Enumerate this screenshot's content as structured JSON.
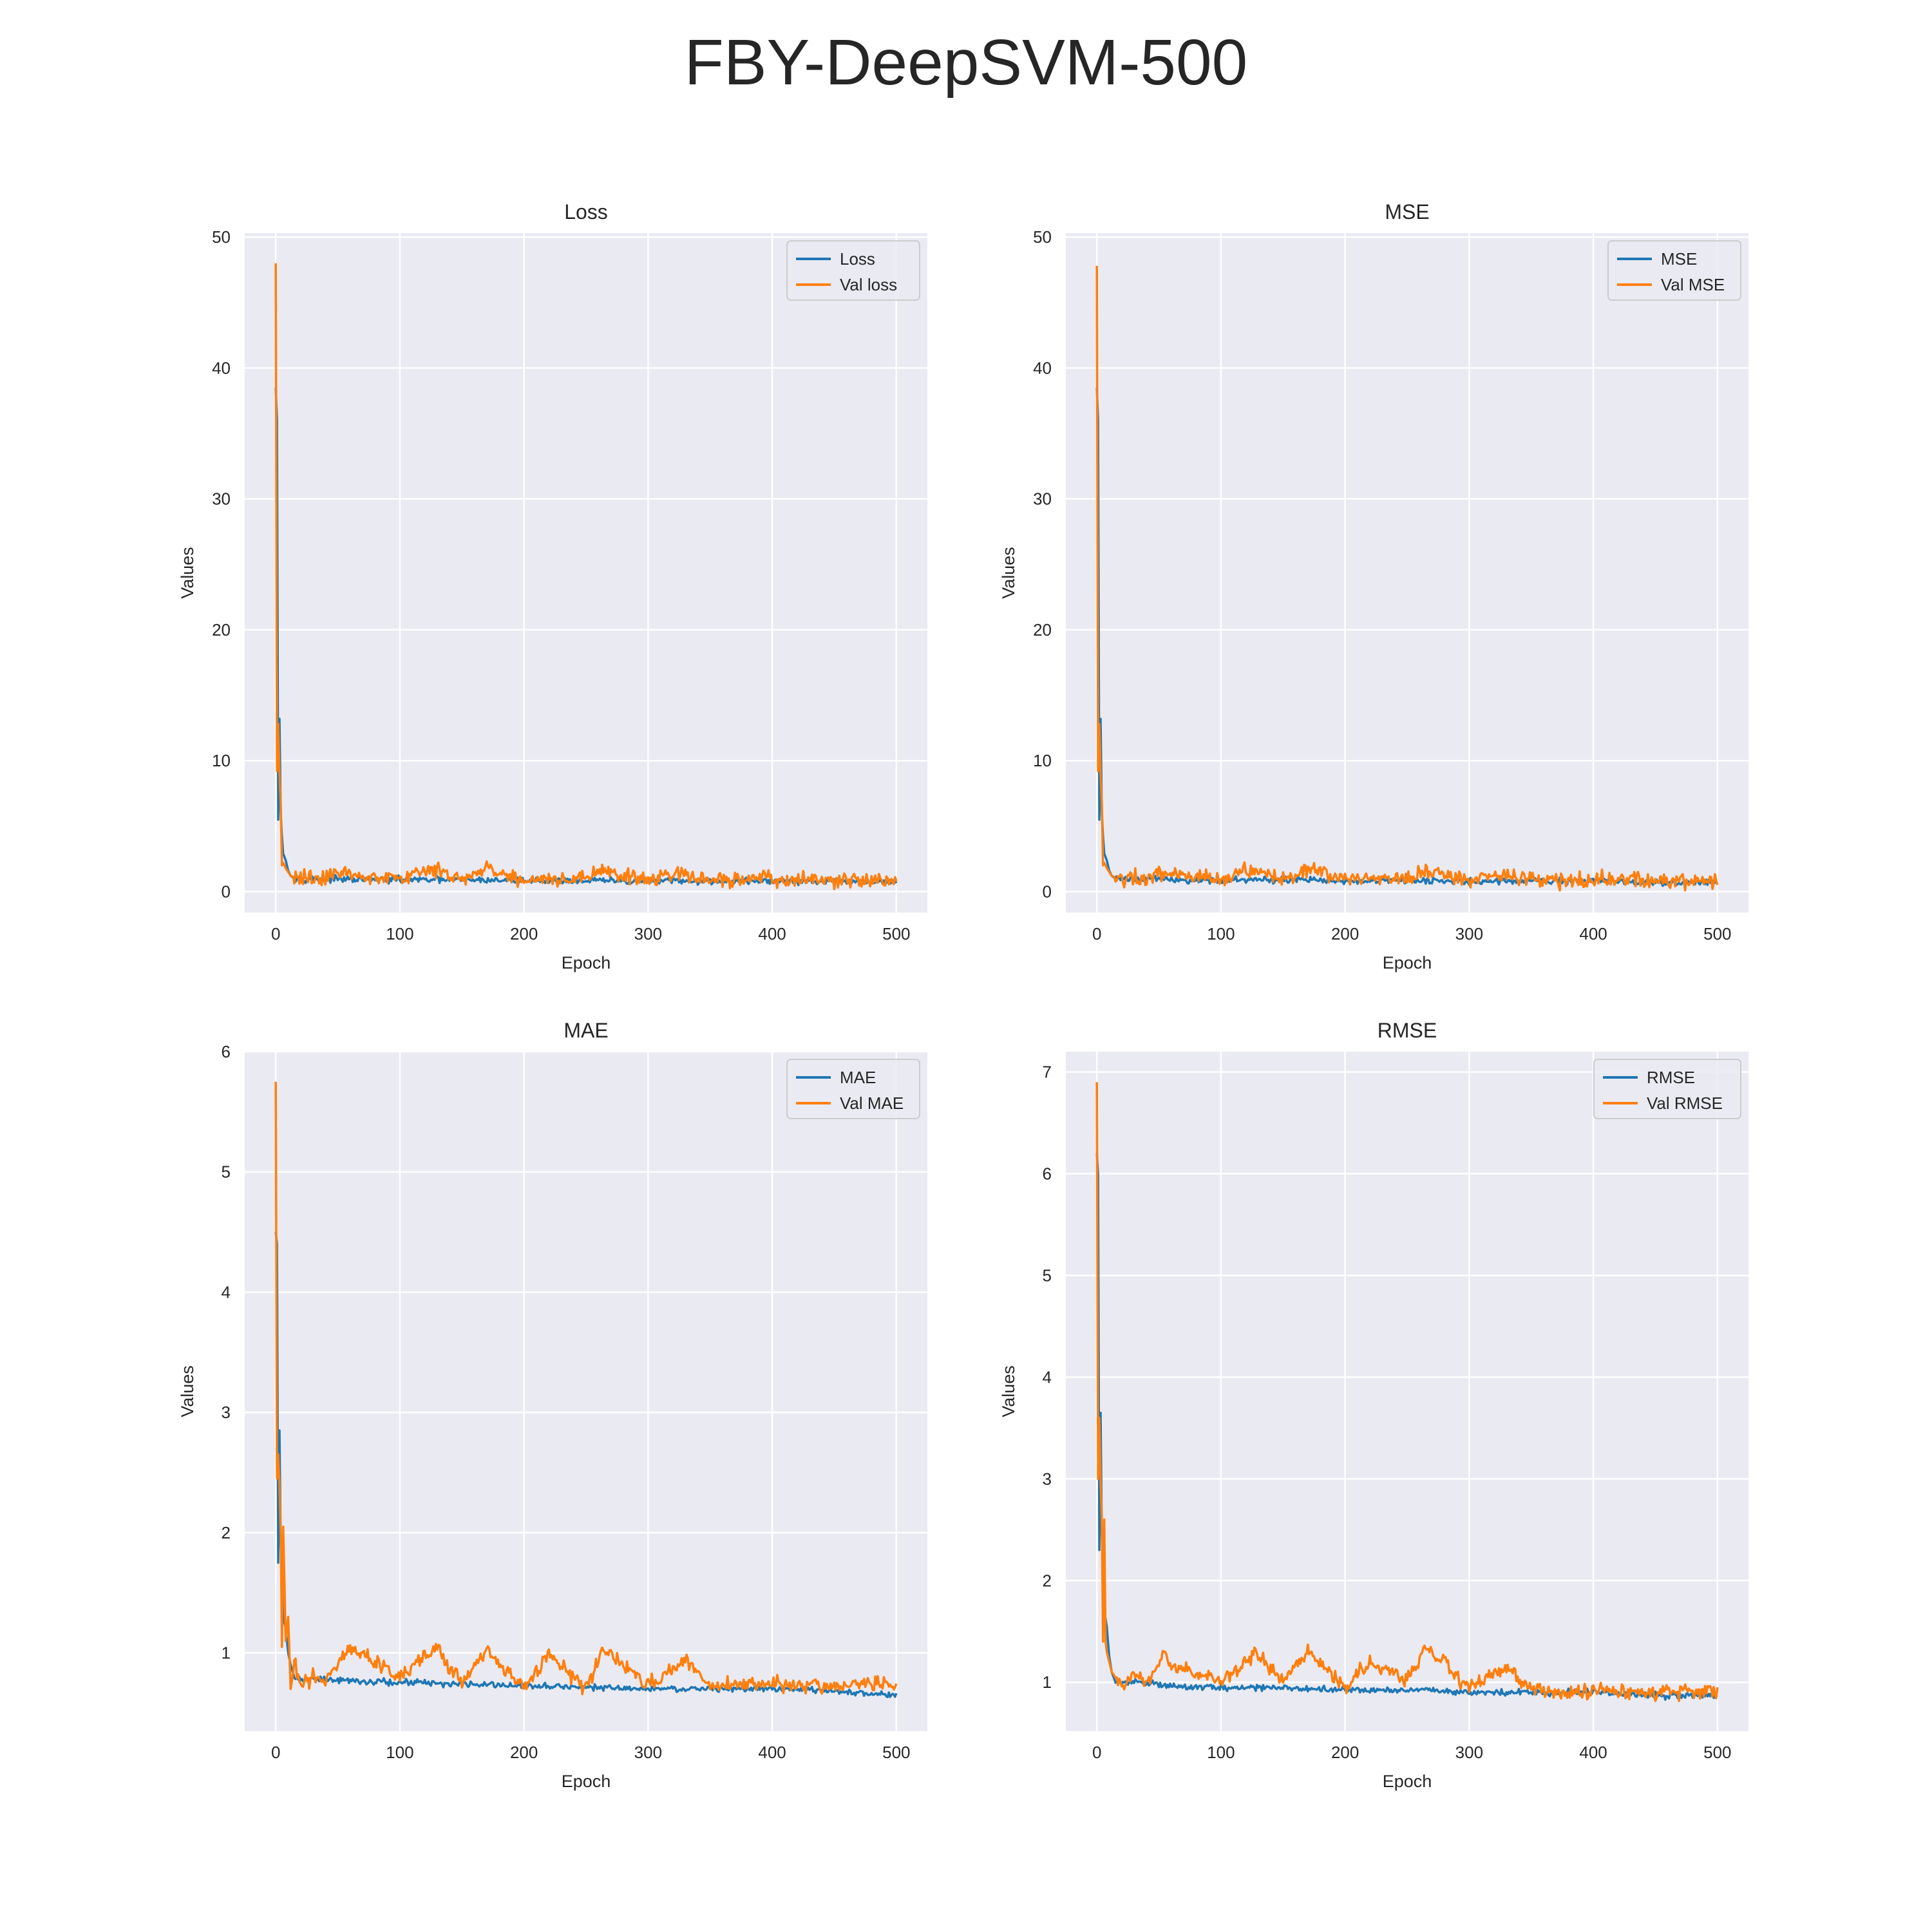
{
  "figure_title": "FBY-DeepSVM-500",
  "chart_data": [
    {
      "type": "line",
      "title": "Loss",
      "xlabel": "Epoch",
      "ylabel": "Values",
      "xlim": [
        -25,
        525
      ],
      "ylim": [
        -1.6,
        50.3
      ],
      "xticks": [
        0,
        100,
        200,
        300,
        400,
        500
      ],
      "yticks": [
        0,
        10,
        20,
        30,
        40,
        50
      ],
      "grid": true,
      "legend": "top-right",
      "series": [
        {
          "name": "Loss",
          "color": "#1f77b4",
          "x": [
            0,
            1,
            2,
            3,
            4,
            5,
            6,
            8,
            10,
            12,
            15,
            20,
            30,
            50,
            75,
            100,
            150,
            200,
            250,
            300,
            350,
            400,
            450,
            500
          ],
          "y": [
            38.5,
            36.0,
            5.5,
            13.2,
            6.0,
            4.2,
            2.9,
            2.4,
            1.6,
            1.2,
            1.0,
            1.0,
            1.0,
            0.95,
            0.9,
            0.9,
            0.9,
            0.85,
            0.85,
            0.8,
            0.8,
            0.8,
            0.75,
            0.75
          ]
        },
        {
          "name": "Val loss",
          "color": "#ff7f0e",
          "x": [
            0,
            1,
            2,
            3,
            4,
            5,
            6,
            7,
            8,
            10,
            12,
            15,
            20,
            30,
            40,
            55,
            60,
            100,
            128,
            150,
            170,
            200,
            250,
            265,
            300,
            317,
            350,
            400,
            450,
            500
          ],
          "y": [
            48.0,
            9.2,
            12.8,
            9.0,
            6.8,
            2.0,
            2.2,
            2.0,
            1.8,
            1.5,
            1.2,
            1.1,
            1.0,
            1.1,
            1.0,
            1.6,
            1.3,
            1.0,
            1.7,
            1.0,
            1.7,
            0.9,
            1.0,
            1.6,
            0.9,
            1.2,
            0.9,
            0.9,
            0.85,
            0.85
          ]
        }
      ]
    },
    {
      "type": "line",
      "title": "MSE",
      "xlabel": "Epoch",
      "ylabel": "Values",
      "xlim": [
        -25,
        525
      ],
      "ylim": [
        -1.6,
        50.3
      ],
      "xticks": [
        0,
        100,
        200,
        300,
        400,
        500
      ],
      "yticks": [
        0,
        10,
        20,
        30,
        40,
        50
      ],
      "grid": true,
      "legend": "top-right",
      "series": [
        {
          "name": "MSE",
          "color": "#1f77b4",
          "x": [
            0,
            1,
            2,
            3,
            4,
            5,
            6,
            8,
            10,
            12,
            15,
            20,
            30,
            50,
            75,
            100,
            150,
            200,
            250,
            300,
            350,
            400,
            450,
            500
          ],
          "y": [
            38.5,
            36.0,
            5.5,
            13.2,
            6.0,
            4.2,
            2.9,
            2.4,
            1.6,
            1.2,
            1.0,
            1.0,
            1.0,
            0.95,
            0.9,
            0.9,
            0.9,
            0.85,
            0.85,
            0.8,
            0.8,
            0.8,
            0.75,
            0.75
          ]
        },
        {
          "name": "Val MSE",
          "color": "#ff7f0e",
          "x": [
            0,
            1,
            2,
            3,
            4,
            5,
            6,
            7,
            8,
            10,
            12,
            15,
            20,
            30,
            40,
            55,
            60,
            100,
            128,
            150,
            170,
            200,
            250,
            265,
            300,
            317,
            350,
            400,
            450,
            500
          ],
          "y": [
            47.8,
            9.2,
            12.8,
            9.0,
            6.8,
            2.0,
            2.2,
            2.0,
            1.8,
            1.5,
            1.2,
            1.1,
            1.0,
            1.1,
            1.0,
            1.6,
            1.3,
            1.0,
            1.7,
            1.0,
            1.7,
            0.9,
            1.0,
            1.6,
            0.9,
            1.2,
            0.9,
            0.9,
            0.85,
            0.85
          ]
        }
      ]
    },
    {
      "type": "line",
      "title": "MAE",
      "xlabel": "Epoch",
      "ylabel": "Values",
      "xlim": [
        -25,
        525
      ],
      "ylim": [
        0.35,
        6.0
      ],
      "xticks": [
        0,
        100,
        200,
        300,
        400,
        500
      ],
      "yticks": [
        1,
        2,
        3,
        4,
        5,
        6
      ],
      "grid": true,
      "legend": "top-right",
      "series": [
        {
          "name": "MAE",
          "color": "#1f77b4",
          "x": [
            0,
            1,
            2,
            3,
            4,
            5,
            6,
            8,
            10,
            12,
            15,
            20,
            30,
            50,
            75,
            100,
            150,
            200,
            250,
            300,
            350,
            400,
            450,
            500
          ],
          "y": [
            4.5,
            4.4,
            1.75,
            2.85,
            1.9,
            1.6,
            1.3,
            1.2,
            1.0,
            0.9,
            0.8,
            0.78,
            0.78,
            0.78,
            0.76,
            0.76,
            0.74,
            0.72,
            0.72,
            0.7,
            0.7,
            0.7,
            0.68,
            0.65
          ]
        },
        {
          "name": "Val MAE",
          "color": "#ff7f0e",
          "x": [
            0,
            1,
            2,
            3,
            4,
            5,
            6,
            7,
            8,
            10,
            12,
            15,
            20,
            30,
            40,
            60,
            100,
            128,
            150,
            170,
            200,
            220,
            250,
            265,
            300,
            330,
            350,
            400,
            450,
            500
          ],
          "y": [
            5.75,
            2.45,
            2.65,
            2.4,
            2.0,
            1.05,
            2.05,
            1.6,
            1.1,
            1.3,
            0.7,
            0.9,
            0.75,
            0.8,
            0.78,
            1.05,
            0.8,
            1.03,
            0.75,
            1.0,
            0.7,
            1.0,
            0.7,
            1.05,
            0.72,
            0.95,
            0.72,
            0.75,
            0.72,
            0.75
          ]
        }
      ]
    },
    {
      "type": "line",
      "title": "RMSE",
      "xlabel": "Epoch",
      "ylabel": "Values",
      "xlim": [
        -25,
        525
      ],
      "ylim": [
        0.52,
        7.2
      ],
      "xticks": [
        0,
        100,
        200,
        300,
        400,
        500
      ],
      "yticks": [
        1,
        2,
        3,
        4,
        5,
        6,
        7
      ],
      "grid": true,
      "legend": "top-right",
      "series": [
        {
          "name": "RMSE",
          "color": "#1f77b4",
          "x": [
            0,
            1,
            2,
            3,
            4,
            5,
            6,
            8,
            10,
            12,
            15,
            20,
            30,
            50,
            75,
            100,
            150,
            200,
            250,
            300,
            350,
            400,
            450,
            500
          ],
          "y": [
            6.2,
            6.0,
            2.3,
            3.65,
            2.45,
            2.05,
            1.7,
            1.55,
            1.25,
            1.1,
            1.0,
            1.0,
            1.0,
            0.98,
            0.95,
            0.95,
            0.95,
            0.92,
            0.92,
            0.9,
            0.9,
            0.9,
            0.87,
            0.87
          ]
        },
        {
          "name": "Val RMSE",
          "color": "#ff7f0e",
          "x": [
            0,
            1,
            2,
            3,
            4,
            5,
            6,
            7,
            8,
            10,
            12,
            15,
            20,
            30,
            40,
            55,
            60,
            100,
            128,
            150,
            170,
            200,
            220,
            250,
            265,
            300,
            330,
            350,
            400,
            450,
            500
          ],
          "y": [
            6.9,
            3.0,
            3.6,
            3.0,
            2.6,
            1.4,
            2.6,
            1.4,
            1.3,
            1.2,
            1.1,
            1.05,
            1.0,
            1.05,
            1.0,
            1.3,
            1.15,
            1.0,
            1.3,
            1.0,
            1.3,
            0.95,
            1.2,
            1.0,
            1.35,
            0.95,
            1.15,
            0.92,
            0.92,
            0.9,
            0.92
          ]
        }
      ]
    }
  ]
}
